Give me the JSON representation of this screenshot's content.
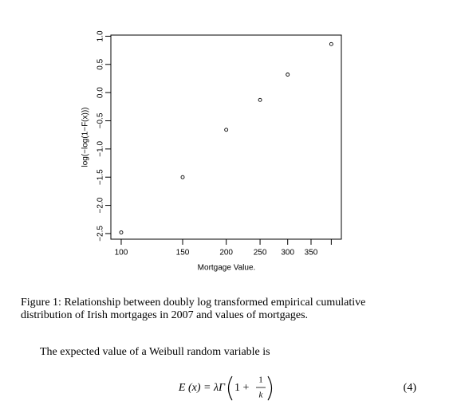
{
  "chart_data": {
    "type": "scatter",
    "x_label": "Mortgage Value.",
    "y_label": "log(−log(1−F(x)))",
    "x": [
      100,
      150,
      200,
      250,
      300,
      400
    ],
    "values": [
      -2.48,
      -1.5,
      -0.66,
      -0.13,
      0.32,
      0.86
    ],
    "xlim": [
      93.4,
      427.5
    ],
    "ylim": [
      -2.6,
      1.02
    ],
    "x_scale": "log",
    "xticks": [
      100,
      150,
      200,
      250,
      300,
      350,
      {
        "value": 400,
        "label": null
      }
    ],
    "yticks": [
      {
        "value": -2.5,
        "label": "−2.5"
      },
      {
        "value": -2,
        "label": "−2.0"
      },
      {
        "value": -1.5,
        "label": "−1.5"
      },
      {
        "value": -1,
        "label": "−1.0"
      },
      {
        "value": -0.5,
        "label": "−0.5"
      },
      {
        "value": 0,
        "label": "0.0"
      },
      0.5,
      {
        "value": 1,
        "label": "1.0"
      }
    ],
    "color": "#000000",
    "marker": "open-circle"
  },
  "caption": {
    "lines": [
      "Figure 1: Relationship between doubly log transformed empirical cumulative",
      "distribution of Irish mortgages in 2007 and values of mortgages."
    ]
  },
  "paragraph": "The expected value of a Weibull random variable is",
  "equation": {
    "lhs": "E (x) = λΓ",
    "inner": "1 +",
    "numerator": "1",
    "denominator": "k",
    "number": "(4)"
  }
}
